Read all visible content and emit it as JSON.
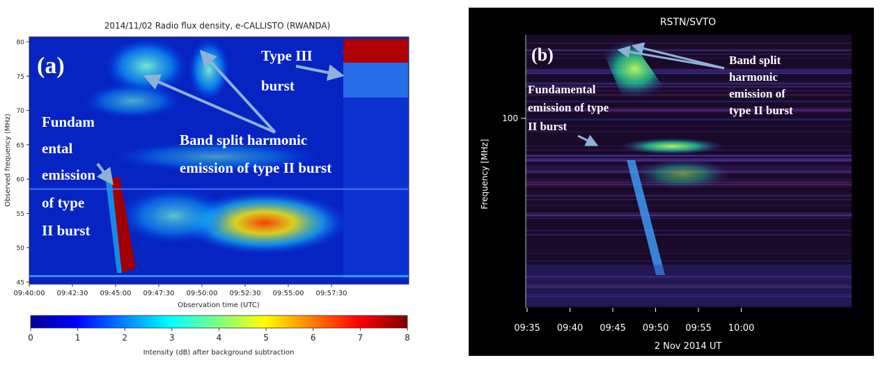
{
  "chart_data": [
    {
      "type": "heatmap",
      "panel_label": "(a)",
      "title": "2014/11/02  Radio flux density, e-CALLISTO (RWANDA)",
      "xlabel": "Observation time (UTC)",
      "ylabel": "Observed frequency (MHz)",
      "x_ticks": [
        "09:40:00",
        "09:42:30",
        "09:45:00",
        "09:47:30",
        "09:50:00",
        "09:52:30",
        "09:55:00",
        "09:57:30"
      ],
      "y_ticks": [
        "45",
        "50",
        "55",
        "60",
        "65",
        "70",
        "75",
        "80"
      ],
      "ylim": [
        45,
        81
      ],
      "colorbar": {
        "label": "Intensity (dB) after background subtraction",
        "ticks": [
          "0",
          "1",
          "2",
          "3",
          "4",
          "5",
          "6",
          "7",
          "8"
        ],
        "range": [
          0,
          8
        ]
      },
      "annotations": [
        {
          "lines": [
            "Type III",
            "burst"
          ]
        },
        {
          "lines": [
            "Band split harmonic",
            "emission of type II burst"
          ]
        },
        {
          "lines": [
            "Fundam",
            "ental",
            "emission",
            "of type",
            "II burst"
          ]
        }
      ]
    },
    {
      "type": "heatmap",
      "panel_label": "(b)",
      "title": "RSTN/SVTO",
      "xlabel": "2 Nov 2014 UT",
      "ylabel": "Frequency [MHz]",
      "x_ticks": [
        "09:35",
        "09:40",
        "09:45",
        "09:50",
        "09:55",
        "10:00"
      ],
      "y_ticks": [
        "100"
      ],
      "annotations": [
        {
          "lines": [
            "Band split",
            "harmonic",
            "emission of",
            "type II burst"
          ]
        },
        {
          "lines": [
            "Fundamental",
            "emission of type",
            "II burst"
          ]
        }
      ]
    }
  ],
  "colors": {
    "jet_low": "#00008f",
    "jet_mid": "#0060ff",
    "jet_high": "#800000",
    "arrow": "#8fb1d8",
    "panel_b_bg": "#000000"
  }
}
